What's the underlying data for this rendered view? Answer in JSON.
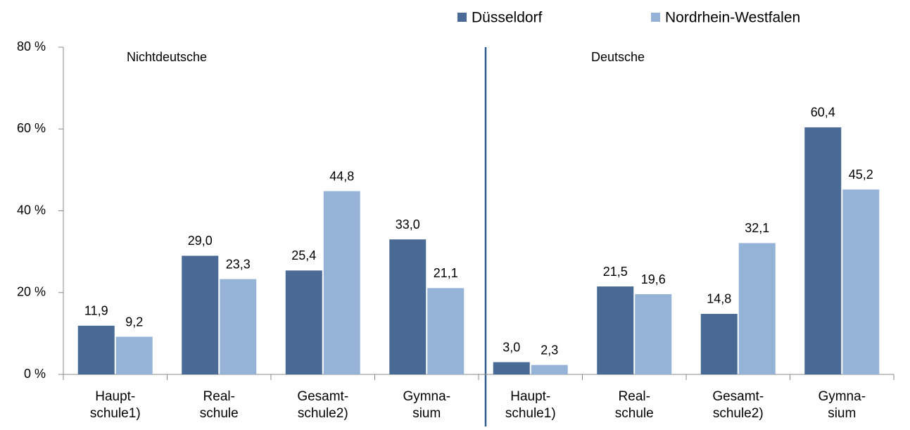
{
  "chart_data": {
    "type": "bar",
    "categories": [
      "Haupt-\nschule1)",
      "Real-\nschule",
      "Gesamt-\nschule2)",
      "Gymna-\nsium",
      "Haupt-\nschule1)",
      "Real-\nschule",
      "Gesamt-\nschule2)",
      "Gymna-\nsium"
    ],
    "series": [
      {
        "name": "Düsseldorf",
        "color": "#4a6a96",
        "values": [
          11.9,
          29.0,
          25.4,
          33.0,
          3.0,
          21.5,
          14.8,
          60.4
        ],
        "value_labels": [
          "11,9",
          "29,0",
          "25,4",
          "33,0",
          "3,0",
          "21,5",
          "14,8",
          "60,4"
        ]
      },
      {
        "name": "Nordrhein-Westfalen",
        "color": "#95b3d7",
        "values": [
          9.2,
          23.3,
          44.8,
          21.1,
          2.3,
          19.6,
          32.1,
          45.2
        ],
        "value_labels": [
          "9,2",
          "23,3",
          "44,8",
          "21,1",
          "2,3",
          "19,6",
          "32,1",
          "45,2"
        ]
      }
    ],
    "annotations": [
      "Nichtdeutsche",
      "Deutsche"
    ],
    "ylim": [
      0,
      80
    ],
    "yticks": [
      {
        "value": 0,
        "label": "0 %"
      },
      {
        "value": 20,
        "label": "20 %"
      },
      {
        "value": 40,
        "label": "40 %"
      },
      {
        "value": 60,
        "label": "60 %"
      },
      {
        "value": 80,
        "label": "80 %"
      }
    ],
    "legend": "top"
  }
}
